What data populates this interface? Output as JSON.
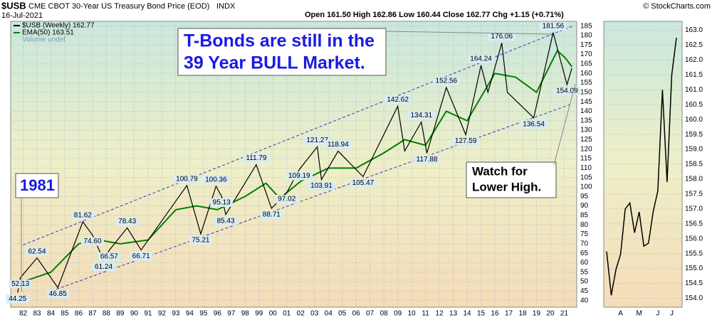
{
  "chart_data": [
    {
      "type": "line",
      "symbol": "$USB",
      "title": "CME CBOT 30-Year US Treasury Bond Price (EOD)",
      "exchange": "INDX",
      "date": "16-Jul-2021",
      "quote": "Open 161.50 High 162.86 Low 160.44 Close 162.77 Chg +1.15 (+0.71%)",
      "credit": "© StockCharts.com",
      "legend_extra": "Volume undef",
      "annotations": {
        "headline": [
          "T-Bonds are still in the",
          "39 Year BULL Market."
        ],
        "year": "1981",
        "watch": [
          "Watch for",
          "Lower High."
        ]
      },
      "series": [
        {
          "name": "$USB (Weekly) 162.77",
          "color": "#000000",
          "x": [
            1981.6,
            1981.8,
            1983.0,
            1984.5,
            1986.3,
            1987.0,
            1987.8,
            1988.2,
            1989.5,
            1990.5,
            1993.8,
            1994.8,
            1995.9,
            1996.3,
            1996.6,
            1998.8,
            1999.9,
            2001.0,
            2001.9,
            2003.2,
            2003.5,
            2004.7,
            2006.5,
            2009.0,
            2009.5,
            2010.7,
            2011.1,
            2012.5,
            2013.9,
            2015.0,
            2015.5,
            2016.5,
            2016.9,
            2018.8,
            2020.2,
            2021.2,
            2021.55
          ],
          "values": [
            44.25,
            52.13,
            62.54,
            46.85,
            81.62,
            74.6,
            61.24,
            66.57,
            78.43,
            66.71,
            100.79,
            75.21,
            100.36,
            95.13,
            85.43,
            111.79,
            88.71,
            97.02,
            109.19,
            121.27,
            103.91,
            118.94,
            105.47,
            142.62,
            119,
            134.31,
            117.88,
            152.56,
            127.59,
            164.24,
            150,
            176.06,
            150,
            136.54,
            181.56,
            154.09,
            162.77
          ],
          "value_labels": [
            "44.25",
            "52.13",
            "62.54",
            "46.85",
            "81.62",
            "74.60",
            "61.24",
            "66.57",
            "78.43",
            "66.71",
            "100.79",
            "75.21",
            "100.36",
            "95.13",
            "85.43",
            "111.79",
            "88.71",
            "97.02",
            "109.19",
            "121.27",
            "103.91",
            "118.94",
            "105.47",
            "142.62",
            null,
            "134.31",
            "117.88",
            "152.56",
            "127.59",
            "164.24",
            null,
            "176.06",
            null,
            "136.54",
            "181.56",
            "154.09",
            null
          ]
        },
        {
          "name": "EMA(50) 163.51",
          "color": "#008000",
          "x": [
            1982,
            1984,
            1986,
            1987.5,
            1989,
            1991,
            1993,
            1994.5,
            1996,
            1998,
            1999.5,
            2000.5,
            2002,
            2004,
            2006,
            2008,
            2009.5,
            2011,
            2012.5,
            2014,
            2016,
            2017.5,
            2019,
            2020.5,
            2021.1,
            2021.55
          ],
          "values": [
            50,
            55,
            70,
            72,
            70,
            72,
            88,
            90,
            88,
            95,
            102,
            94,
            103,
            110,
            110,
            118,
            125,
            122,
            140,
            135,
            160,
            158,
            150,
            172,
            168,
            163.51
          ]
        }
      ],
      "trendlines": [
        {
          "color": "#3333cc",
          "x": [
            1982,
            2021.6
          ],
          "values": [
            69.4,
            185
          ]
        },
        {
          "color": "#3333cc",
          "x": [
            1984.4,
            2021.6
          ],
          "values": [
            46,
            144
          ]
        }
      ],
      "xlim": [
        1981.1,
        2021.9
      ],
      "xticks": [
        {
          "value": 1982,
          "label": "82"
        },
        {
          "value": 1983,
          "label": "83"
        },
        {
          "value": 1984,
          "label": "84"
        },
        {
          "value": 1985,
          "label": "85"
        },
        {
          "value": 1986,
          "label": "86"
        },
        {
          "value": 1987,
          "label": "87"
        },
        {
          "value": 1988,
          "label": "88"
        },
        {
          "value": 1989,
          "label": "89"
        },
        {
          "value": 1990,
          "label": "90"
        },
        {
          "value": 1991,
          "label": "91"
        },
        {
          "value": 1992,
          "label": "92"
        },
        {
          "value": 1993,
          "label": "93"
        },
        {
          "value": 1994,
          "label": "94"
        },
        {
          "value": 1995,
          "label": "95"
        },
        {
          "value": 1996,
          "label": "96"
        },
        {
          "value": 1997,
          "label": "97"
        },
        {
          "value": 1998,
          "label": "98"
        },
        {
          "value": 1999,
          "label": "99"
        },
        {
          "value": 2000,
          "label": "00"
        },
        {
          "value": 2001,
          "label": "01"
        },
        {
          "value": 2002,
          "label": "02"
        },
        {
          "value": 2003,
          "label": "03"
        },
        {
          "value": 2004,
          "label": "04"
        },
        {
          "value": 2005,
          "label": "05"
        },
        {
          "value": 2006,
          "label": "06"
        },
        {
          "value": 2007,
          "label": "07"
        },
        {
          "value": 2008,
          "label": "08"
        },
        {
          "value": 2009,
          "label": "09"
        },
        {
          "value": 2010,
          "label": "10"
        },
        {
          "value": 2011,
          "label": "11"
        },
        {
          "value": 2012,
          "label": "12"
        },
        {
          "value": 2013,
          "label": "13"
        },
        {
          "value": 2014,
          "label": "14"
        },
        {
          "value": 2015,
          "label": "15"
        },
        {
          "value": 2016,
          "label": "16"
        },
        {
          "value": 2017,
          "label": "17"
        },
        {
          "value": 2018,
          "label": "18"
        },
        {
          "value": 2019,
          "label": "19"
        },
        {
          "value": 2020,
          "label": "20"
        },
        {
          "value": 2021,
          "label": "21"
        }
      ],
      "ylim": [
        36.5,
        187.5
      ],
      "yticks": [
        40,
        45,
        50,
        55,
        60,
        65,
        70,
        75,
        80,
        85,
        90,
        95,
        100,
        105,
        110,
        115,
        120,
        125,
        130,
        135,
        140,
        145,
        150,
        155,
        160,
        165,
        170,
        175,
        180,
        185
      ],
      "grid": true
    },
    {
      "type": "line",
      "categories": [
        null,
        null,
        null,
        "A",
        null,
        null,
        null,
        "M",
        null,
        null,
        null,
        "J",
        null,
        null,
        "J",
        null
      ],
      "series": [
        {
          "color": "#000000",
          "values": [
            155.57,
            154.1,
            154.96,
            155.48,
            157.0,
            157.2,
            156.2,
            156.9,
            155.75,
            155.85,
            156.9,
            157.6,
            161.0,
            157.9,
            161.5,
            162.75
          ]
        }
      ],
      "ylim": [
        153.7,
        163.3
      ],
      "yticks": [
        {
          "value": 154,
          "label": "154.0"
        },
        {
          "value": 154.5,
          "label": "154.5"
        },
        {
          "value": 155,
          "label": "155.0"
        },
        {
          "value": 155.5,
          "label": "155.5"
        },
        {
          "value": 156,
          "label": "156.0"
        },
        {
          "value": 156.5,
          "label": "156.5"
        },
        {
          "value": 157,
          "label": "157.0"
        },
        {
          "value": 157.5,
          "label": "157.5"
        },
        {
          "value": 158,
          "label": "158.0"
        },
        {
          "value": 158.5,
          "label": "158.5"
        },
        {
          "value": 159,
          "label": "159.0"
        },
        {
          "value": 159.5,
          "label": "159.5"
        },
        {
          "value": 160,
          "label": "160.0"
        },
        {
          "value": 160.5,
          "label": "160.5"
        },
        {
          "value": 161,
          "label": "161.0"
        },
        {
          "value": 161.5,
          "label": "161.5"
        },
        {
          "value": 162,
          "label": "162.0"
        },
        {
          "value": 162.5,
          "label": "162.5"
        },
        {
          "value": 163,
          "label": "163.0"
        }
      ],
      "grid": true
    }
  ]
}
